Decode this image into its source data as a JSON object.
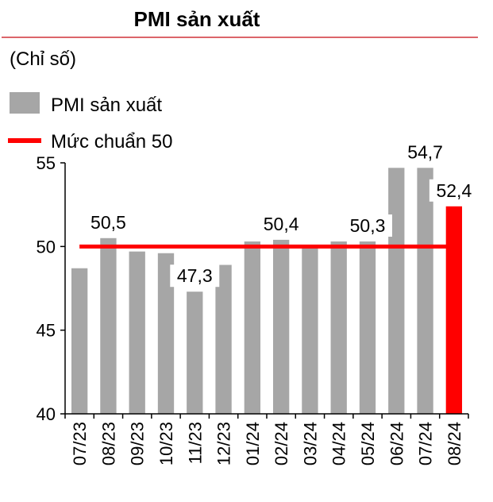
{
  "colors": {
    "bar": "#a6a6a6",
    "highlight_bar": "#ff0000",
    "benchmark": "#ff0000",
    "title_rule": "#d0323a"
  },
  "chart_data": {
    "type": "bar",
    "title": "PMI sản xuất",
    "unit_label": "(Chỉ số)",
    "categories": [
      "07/23",
      "08/23",
      "09/23",
      "10/23",
      "11/23",
      "12/23",
      "01/24",
      "02/24",
      "03/24",
      "04/24",
      "05/24",
      "06/24",
      "07/24",
      "08/24"
    ],
    "series": [
      {
        "name": "PMI sản xuất",
        "values": [
          48.7,
          50.5,
          49.7,
          49.6,
          47.3,
          48.9,
          50.3,
          50.4,
          50.0,
          50.3,
          50.3,
          54.7,
          54.7,
          52.4
        ]
      }
    ],
    "highlight_index": 13,
    "benchmark": {
      "name": "Mức chuẩn 50",
      "value": 50
    },
    "ylim": [
      40,
      55
    ],
    "yticks": [
      40,
      45,
      50,
      55
    ],
    "data_labels": [
      {
        "index": 1,
        "text": "50,5"
      },
      {
        "index": 4,
        "text": "47,3"
      },
      {
        "index": 7,
        "text": "50,4"
      },
      {
        "index": 10,
        "text": "50,3"
      },
      {
        "index": 12,
        "text": "54,7"
      },
      {
        "index": 13,
        "text": "52,4"
      }
    ],
    "legend": [
      {
        "label": "PMI sản xuất",
        "marker": "bar"
      },
      {
        "label": "Mức chuẩn 50",
        "marker": "line"
      }
    ],
    "legend_position": "top-left",
    "grid": false
  }
}
